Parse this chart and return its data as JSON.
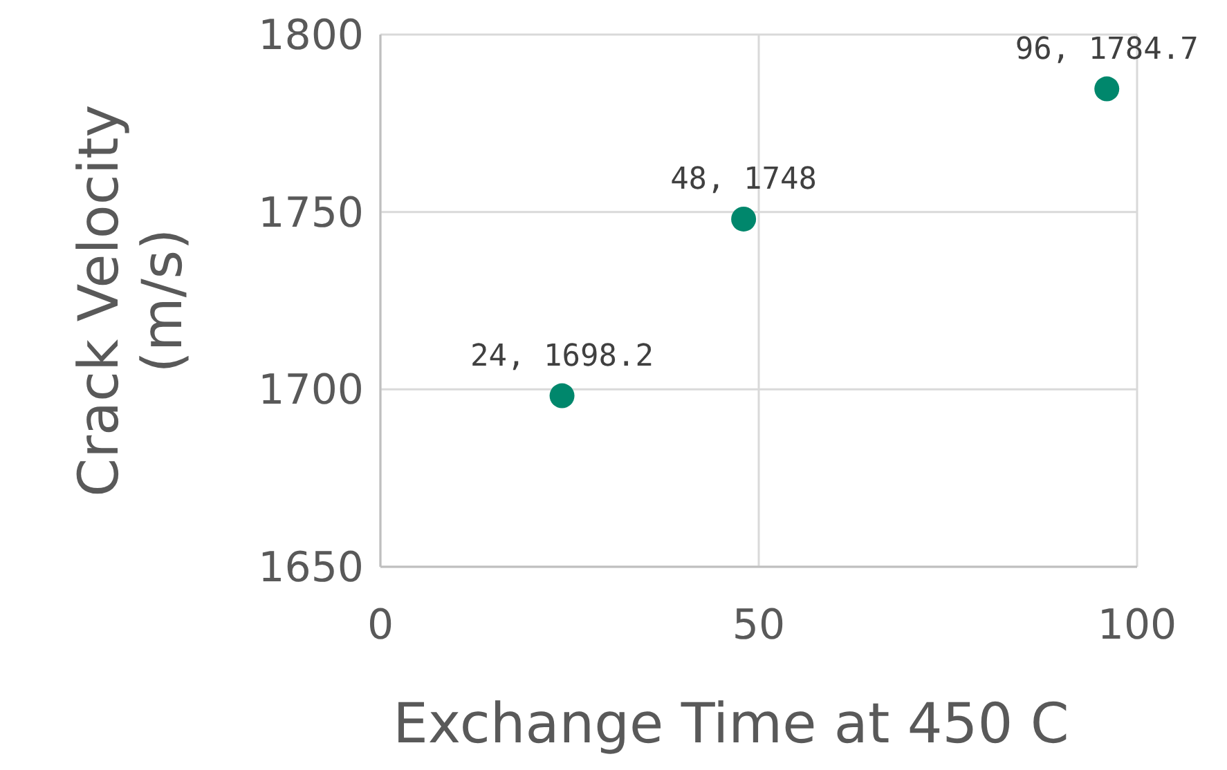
{
  "chart_data": {
    "type": "scatter",
    "xlabel": "Exchange Time at 450 C",
    "ylabel": "Crack Velocity\n(m/s)",
    "x": [
      24,
      48,
      96
    ],
    "values": [
      1698.2,
      1748,
      1784.7
    ],
    "value_labels": [
      "24, 1698.2",
      "48, 1748",
      "96, 1784.7"
    ],
    "color": "#00876c",
    "marker": "circle",
    "xlim": [
      0,
      100
    ],
    "xticks": [
      0,
      50,
      100
    ],
    "ylim": [
      1650,
      1800
    ],
    "yticks": [
      1650,
      1700,
      1750,
      1800
    ],
    "grid": true
  }
}
